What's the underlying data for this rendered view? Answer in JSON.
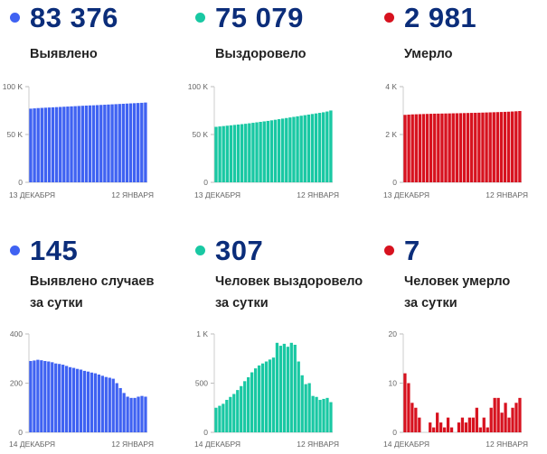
{
  "panels": [
    {
      "value": "83 376",
      "label_lines": [
        "Выявлено"
      ],
      "color": "#3f62f2",
      "chart_data": {
        "type": "bar",
        "ylim": [
          0,
          100000
        ],
        "yticks": [
          0,
          50000,
          100000
        ],
        "ytick_labels": [
          "0",
          "50 K",
          "100 K"
        ],
        "xlabels": [
          "13 ДЕКАБРЯ",
          "12 ЯНВАРЯ"
        ],
        "values": [
          77000,
          77300,
          77600,
          77800,
          78000,
          78200,
          78400,
          78600,
          78800,
          79000,
          79200,
          79400,
          79600,
          79800,
          80000,
          80200,
          80400,
          80500,
          80700,
          80900,
          81100,
          81300,
          81500,
          81700,
          81900,
          82100,
          82300,
          82500,
          82700,
          82900,
          83100,
          83376
        ]
      }
    },
    {
      "value": "75 079",
      "label_lines": [
        "Выздоровело"
      ],
      "color": "#19c8a3",
      "chart_data": {
        "type": "bar",
        "ylim": [
          0,
          100000
        ],
        "yticks": [
          0,
          50000,
          100000
        ],
        "ytick_labels": [
          "0",
          "50 K",
          "100 K"
        ],
        "xlabels": [
          "13 ДЕКАБРЯ",
          "12 ЯНВАРЯ"
        ],
        "values": [
          58000,
          58400,
          58800,
          59200,
          59600,
          60000,
          60400,
          60800,
          61200,
          61700,
          62200,
          62700,
          63200,
          63700,
          64200,
          64800,
          65400,
          66000,
          66600,
          67200,
          67800,
          68400,
          69000,
          69600,
          70200,
          70800,
          71400,
          72000,
          72600,
          73200,
          74000,
          75079
        ]
      }
    },
    {
      "value": "2 981",
      "label_lines": [
        "Умерло"
      ],
      "color": "#d7121f",
      "chart_data": {
        "type": "bar",
        "ylim": [
          0,
          4000
        ],
        "yticks": [
          0,
          2000,
          4000
        ],
        "ytick_labels": [
          "0",
          "2 K",
          "4 K"
        ],
        "xlabels": [
          "13 ДЕКАБРЯ",
          "12 ЯНВАРЯ"
        ],
        "values": [
          2820,
          2830,
          2840,
          2845,
          2850,
          2855,
          2860,
          2865,
          2870,
          2872,
          2875,
          2878,
          2881,
          2885,
          2888,
          2891,
          2895,
          2899,
          2903,
          2907,
          2911,
          2915,
          2920,
          2925,
          2930,
          2935,
          2940,
          2946,
          2952,
          2960,
          2970,
          2981
        ]
      }
    },
    {
      "value": "145",
      "label_lines": [
        "Выявлено случаев",
        "за сутки"
      ],
      "color": "#3f62f2",
      "chart_data": {
        "type": "bar",
        "ylim": [
          0,
          400
        ],
        "yticks": [
          0,
          200,
          400
        ],
        "ytick_labels": [
          "0",
          "200",
          "400"
        ],
        "xlabels": [
          "14 ДЕКАБРЯ",
          "12 ЯНВАРЯ"
        ],
        "values": [
          290,
          292,
          295,
          293,
          290,
          288,
          285,
          280,
          278,
          275,
          270,
          265,
          262,
          258,
          255,
          250,
          247,
          243,
          240,
          235,
          230,
          225,
          222,
          218,
          200,
          180,
          160,
          145,
          140,
          140,
          145,
          148,
          145
        ]
      }
    },
    {
      "value": "307",
      "label_lines": [
        "Человек выздоровело",
        "за сутки"
      ],
      "color": "#19c8a3",
      "chart_data": {
        "type": "bar",
        "ylim": [
          0,
          1000
        ],
        "yticks": [
          0,
          500,
          1000
        ],
        "ytick_labels": [
          "0",
          "500",
          "1 K"
        ],
        "xlabels": [
          "14 ДЕКАБРЯ",
          "12 ЯНВАРЯ"
        ],
        "values": [
          250,
          270,
          290,
          330,
          360,
          390,
          430,
          470,
          520,
          560,
          610,
          650,
          680,
          700,
          720,
          740,
          760,
          910,
          880,
          900,
          870,
          910,
          890,
          720,
          580,
          490,
          500,
          370,
          360,
          330,
          340,
          350,
          307
        ]
      }
    },
    {
      "value": "7",
      "label_lines": [
        "Человек умерло",
        "за сутки"
      ],
      "color": "#d7121f",
      "chart_data": {
        "type": "bar",
        "ylim": [
          0,
          20
        ],
        "yticks": [
          0,
          10,
          20
        ],
        "ytick_labels": [
          "0",
          "10",
          "20"
        ],
        "xlabels": [
          "14 ДЕКАБРЯ",
          "12 ЯНВАРЯ"
        ],
        "values": [
          12,
          10,
          6,
          5,
          3,
          0,
          0,
          2,
          1,
          4,
          2,
          1,
          3,
          1,
          0,
          2,
          3,
          2,
          3,
          3,
          5,
          1,
          3,
          1,
          5,
          7,
          7,
          4,
          6,
          3,
          5,
          6,
          7
        ]
      }
    }
  ]
}
